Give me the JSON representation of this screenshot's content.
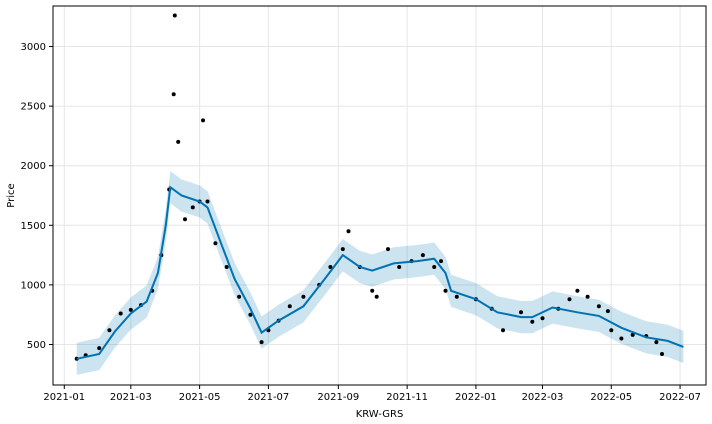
{
  "chart_data": {
    "type": "scatter",
    "xlabel": "KRW-GRS",
    "ylabel": "Price",
    "x_ticks": [
      "2021-01",
      "2021-03",
      "2021-05",
      "2021-07",
      "2021-09",
      "2021-11",
      "2022-01",
      "2022-03",
      "2022-05",
      "2022-07"
    ],
    "y_ticks": [
      500,
      1000,
      1500,
      2000,
      2500,
      3000
    ],
    "xlim": [
      "2020-12-22",
      "2022-07-24"
    ],
    "ylim": [
      160,
      3340
    ],
    "grid": true,
    "legend": "none",
    "series": [
      {
        "kind": "observed_points",
        "color": "#000000",
        "points": [
          [
            "2021-01-12",
            380
          ],
          [
            "2021-01-20",
            410
          ],
          [
            "2021-02-01",
            470
          ],
          [
            "2021-02-10",
            620
          ],
          [
            "2021-02-20",
            760
          ],
          [
            "2021-03-01",
            790
          ],
          [
            "2021-03-10",
            830
          ],
          [
            "2021-03-20",
            950
          ],
          [
            "2021-03-28",
            1250
          ],
          [
            "2021-04-04",
            1800
          ],
          [
            "2021-04-08",
            2600
          ],
          [
            "2021-04-09",
            3260
          ],
          [
            "2021-04-12",
            2200
          ],
          [
            "2021-04-18",
            1550
          ],
          [
            "2021-04-25",
            1650
          ],
          [
            "2021-05-01",
            1700
          ],
          [
            "2021-05-04",
            2380
          ],
          [
            "2021-05-08",
            1700
          ],
          [
            "2021-05-15",
            1350
          ],
          [
            "2021-05-25",
            1150
          ],
          [
            "2021-06-05",
            900
          ],
          [
            "2021-06-15",
            750
          ],
          [
            "2021-06-25",
            520
          ],
          [
            "2021-07-01",
            620
          ],
          [
            "2021-07-10",
            700
          ],
          [
            "2021-07-20",
            820
          ],
          [
            "2021-08-01",
            900
          ],
          [
            "2021-08-15",
            1000
          ],
          [
            "2021-08-25",
            1150
          ],
          [
            "2021-09-05",
            1300
          ],
          [
            "2021-09-10",
            1450
          ],
          [
            "2021-09-20",
            1150
          ],
          [
            "2021-10-01",
            950
          ],
          [
            "2021-10-05",
            900
          ],
          [
            "2021-10-15",
            1300
          ],
          [
            "2021-10-25",
            1150
          ],
          [
            "2021-11-05",
            1200
          ],
          [
            "2021-11-15",
            1250
          ],
          [
            "2021-11-25",
            1150
          ],
          [
            "2021-12-01",
            1200
          ],
          [
            "2021-12-05",
            950
          ],
          [
            "2021-12-15",
            900
          ],
          [
            "2022-01-01",
            880
          ],
          [
            "2022-01-15",
            800
          ],
          [
            "2022-01-25",
            620
          ],
          [
            "2022-02-10",
            770
          ],
          [
            "2022-02-20",
            690
          ],
          [
            "2022-03-01",
            720
          ],
          [
            "2022-03-15",
            800
          ],
          [
            "2022-03-25",
            880
          ],
          [
            "2022-04-01",
            950
          ],
          [
            "2022-04-10",
            900
          ],
          [
            "2022-04-20",
            820
          ],
          [
            "2022-04-28",
            780
          ],
          [
            "2022-05-01",
            620
          ],
          [
            "2022-05-10",
            550
          ],
          [
            "2022-05-20",
            580
          ],
          [
            "2022-06-01",
            570
          ],
          [
            "2022-06-10",
            520
          ],
          [
            "2022-06-15",
            420
          ]
        ]
      },
      {
        "kind": "forecast_line",
        "color": "#0072B2",
        "points": [
          [
            "2021-01-12",
            380
          ],
          [
            "2021-02-01",
            420
          ],
          [
            "2021-02-15",
            610
          ],
          [
            "2021-03-01",
            760
          ],
          [
            "2021-03-15",
            860
          ],
          [
            "2021-03-25",
            1100
          ],
          [
            "2021-04-01",
            1500
          ],
          [
            "2021-04-05",
            1820
          ],
          [
            "2021-04-15",
            1750
          ],
          [
            "2021-05-01",
            1700
          ],
          [
            "2021-05-08",
            1650
          ],
          [
            "2021-05-20",
            1350
          ],
          [
            "2021-06-01",
            1050
          ],
          [
            "2021-06-15",
            800
          ],
          [
            "2021-06-25",
            600
          ],
          [
            "2021-07-10",
            700
          ],
          [
            "2021-08-01",
            820
          ],
          [
            "2021-08-20",
            1050
          ],
          [
            "2021-09-05",
            1250
          ],
          [
            "2021-09-20",
            1150
          ],
          [
            "2021-10-01",
            1120
          ],
          [
            "2021-10-20",
            1180
          ],
          [
            "2021-11-10",
            1200
          ],
          [
            "2021-11-25",
            1220
          ],
          [
            "2021-12-05",
            1100
          ],
          [
            "2021-12-10",
            950
          ],
          [
            "2022-01-01",
            880
          ],
          [
            "2022-01-20",
            770
          ],
          [
            "2022-02-10",
            730
          ],
          [
            "2022-02-20",
            730
          ],
          [
            "2022-03-10",
            810
          ],
          [
            "2022-04-01",
            770
          ],
          [
            "2022-04-20",
            740
          ],
          [
            "2022-05-10",
            640
          ],
          [
            "2022-06-01",
            560
          ],
          [
            "2022-06-20",
            530
          ],
          [
            "2022-07-04",
            480
          ]
        ]
      },
      {
        "kind": "uncertainty_band",
        "color": "#0072B2",
        "opacity": 0.2,
        "half_width": 135
      }
    ]
  }
}
